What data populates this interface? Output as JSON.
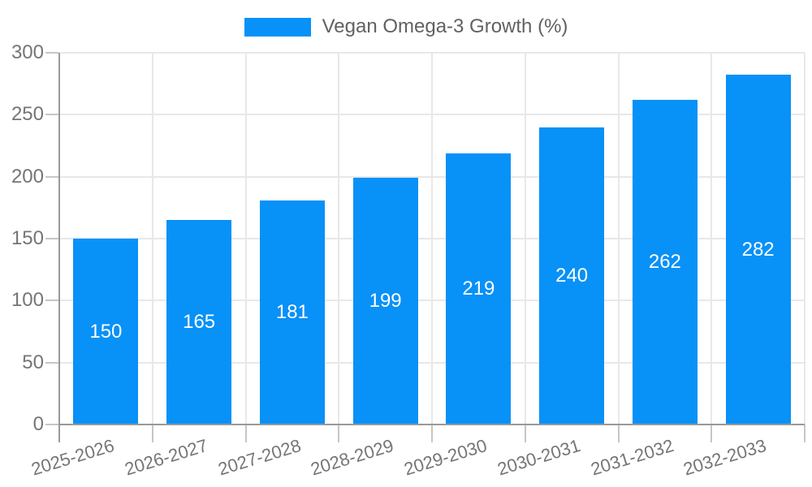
{
  "chart_data": {
    "type": "bar",
    "title": "",
    "legend": {
      "label": "Vegan Omega-3 Growth (%)",
      "position": "top-center"
    },
    "categories": [
      "2025-2026",
      "2026-2027",
      "2027-2028",
      "2028-2029",
      "2029-2030",
      "2030-2031",
      "2031-2032",
      "2032-2033"
    ],
    "series": [
      {
        "name": "Vegan Omega-3 Growth (%)",
        "values": [
          150,
          165,
          181,
          199,
          219,
          240,
          262,
          282
        ]
      }
    ],
    "xlabel": "",
    "ylabel": "",
    "ylim": [
      0,
      300
    ],
    "yticks": [
      0,
      50,
      100,
      150,
      200,
      250,
      300
    ],
    "grid": "horizontal-and-vertical",
    "value_labels": "inside-center",
    "x_label_rotation_deg": -17,
    "colors": {
      "bar": "#0891F7",
      "bar_value_text": "#ffffff",
      "axis_line": "#999999",
      "gridline": "#e8e8e8",
      "tick_mark": "#c6c6c6",
      "tick_label": "#757575",
      "legend_text": "#616161",
      "background": "#ffffff"
    }
  }
}
